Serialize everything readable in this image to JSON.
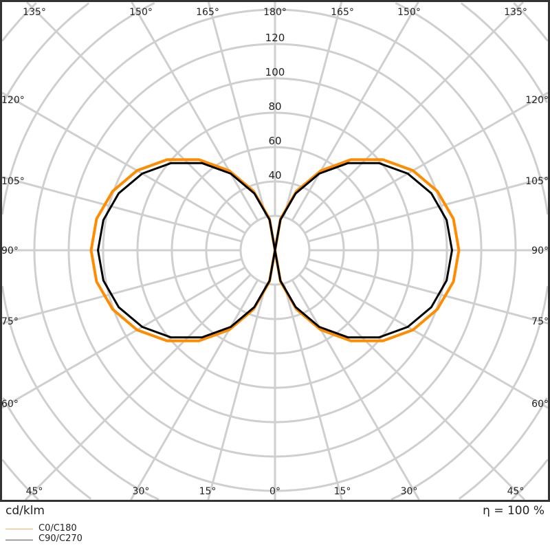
{
  "chart_data": {
    "type": "polar-line",
    "unit_label": "cd/klm",
    "efficiency_label": "η = 100 %",
    "radial_ticks": [
      40,
      60,
      80,
      100,
      120
    ],
    "radial_grid_step": 20,
    "angle_labels_top": [
      "135°",
      "150°",
      "165°",
      "180°",
      "165°",
      "150°",
      "135°"
    ],
    "angle_labels_side": [
      "120°",
      "105°",
      "90°",
      "75°",
      "60°"
    ],
    "angle_labels_bottom": [
      "45°",
      "30°",
      "15°",
      "0°",
      "15°",
      "30°",
      "45°"
    ],
    "grid": true,
    "legend_position": "bottom-left",
    "angles": [
      0,
      10,
      20,
      30,
      40,
      50,
      60,
      70,
      80,
      90,
      100,
      110,
      120,
      130,
      140,
      150,
      160,
      170,
      180
    ],
    "series": [
      {
        "name": "C0/C180",
        "color": "#ff8c00",
        "values": [
          0,
          18.6,
          36.6,
          53.5,
          68.8,
          82,
          92.7,
          100.5,
          105.4,
          107,
          105.4,
          100.5,
          92.7,
          82,
          68.8,
          53.5,
          36.6,
          18.6,
          0
        ]
      },
      {
        "name": "C90/C270",
        "color": "#000000",
        "values": [
          0,
          17.9,
          35.2,
          51.5,
          66.2,
          78.9,
          89.2,
          96.8,
          101.4,
          103,
          101.4,
          96.8,
          89.2,
          78.9,
          66.2,
          51.5,
          35.2,
          17.9,
          0
        ]
      }
    ]
  }
}
